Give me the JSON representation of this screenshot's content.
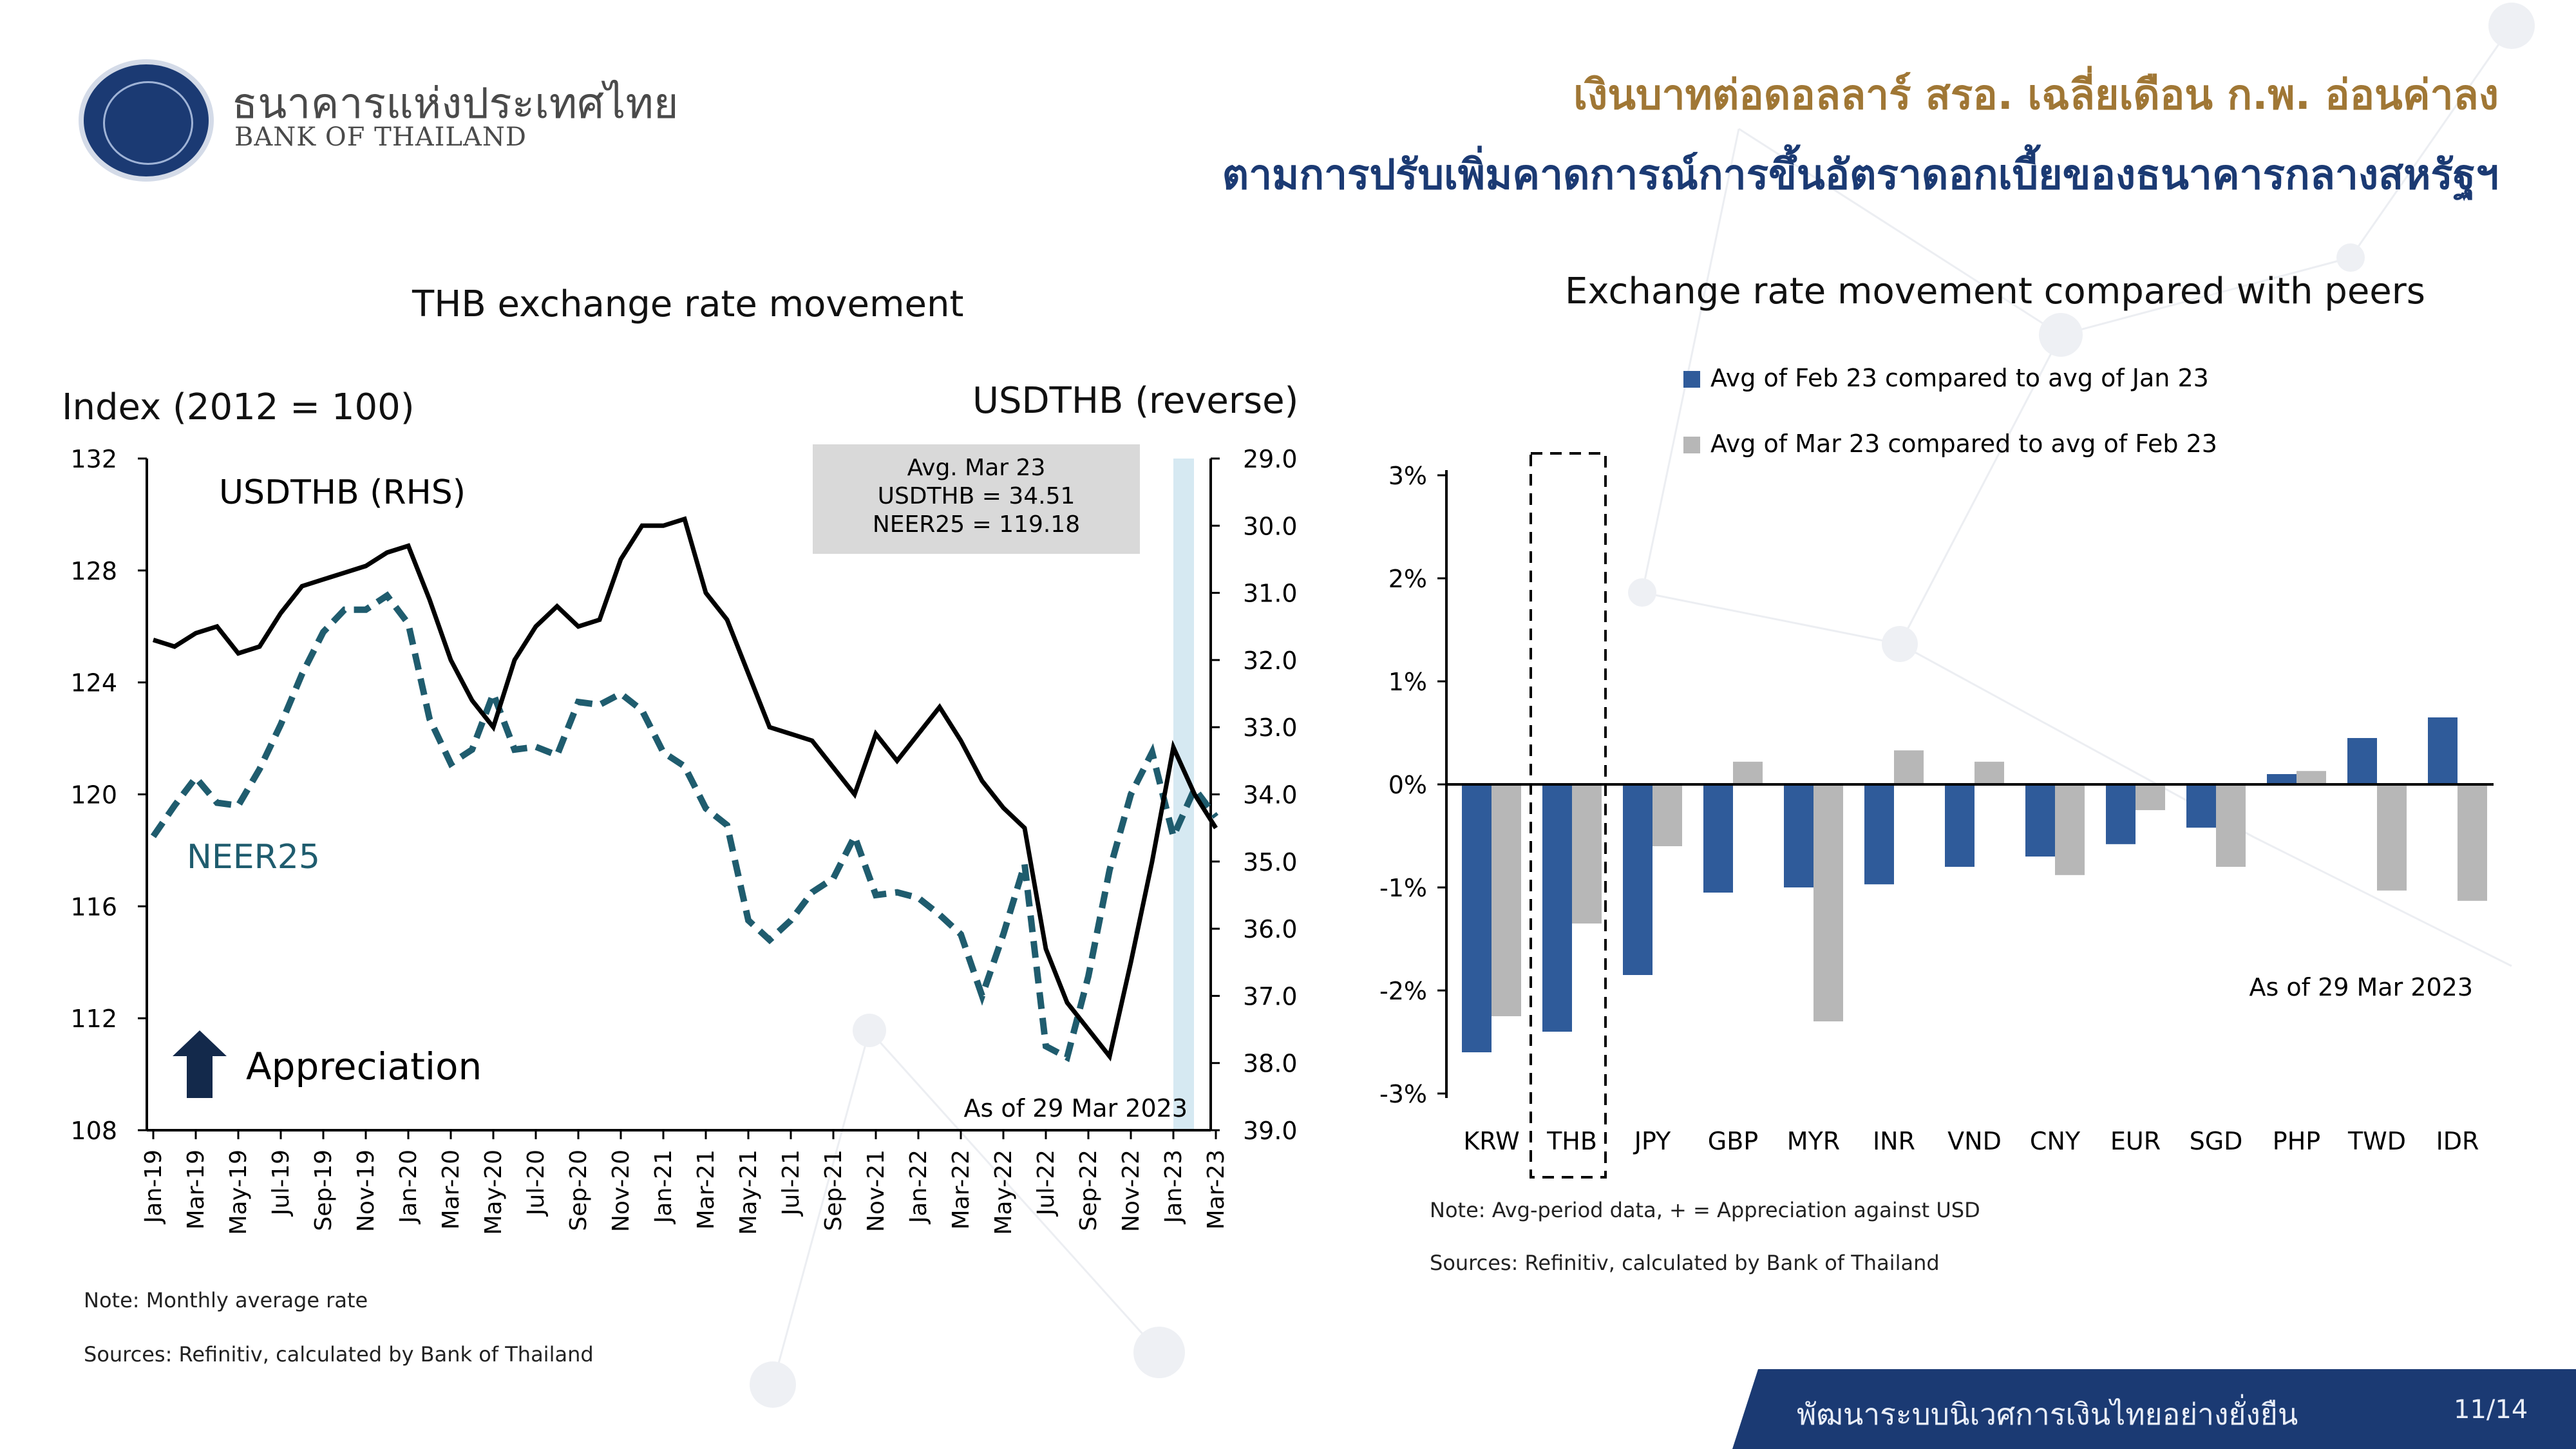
{
  "header": {
    "bank_name_th": "ธนาคารแห่งประเทศไทย",
    "bank_name_en": "BANK OF THAILAND",
    "title_line1": "เงินบาทต่อดอลลาร์ สรอ. เฉลี่ยเดือน ก.พ. อ่อนค่าลง",
    "title_line2": "ตามการปรับเพิ่มคาดการณ์การขึ้นอัตราดอกเบี้ยของธนาคารกลางสหรัฐฯ"
  },
  "colors": {
    "navy": "#1b3a73",
    "gold": "#a07735",
    "feb_bar": "#2f5b9a",
    "mar_bar": "#b7b7b7",
    "neer": "#1f5c6e",
    "usdthb": "#000000",
    "highlight": "#d6e9f2"
  },
  "chart_data": [
    {
      "type": "line",
      "title": "THB exchange rate movement",
      "ylabel_left": "Index (2012 = 100)",
      "ylabel_right": "USDTHB (reverse)",
      "ylim_left": [
        108,
        132
      ],
      "yticks_left": [
        "132",
        "128",
        "124",
        "120",
        "116",
        "112",
        "108"
      ],
      "ylim_right_reversed": [
        29.0,
        39.0
      ],
      "yticks_right": [
        "29.0",
        "30.0",
        "31.0",
        "32.0",
        "33.0",
        "34.0",
        "35.0",
        "36.0",
        "37.0",
        "38.0",
        "39.0"
      ],
      "x_tick_labels": [
        "Jan-19",
        "Mar-19",
        "May-19",
        "Jul-19",
        "Sep-19",
        "Nov-19",
        "Jan-20",
        "Mar-20",
        "May-20",
        "Jul-20",
        "Sep-20",
        "Nov-20",
        "Jan-21",
        "Mar-21",
        "May-21",
        "Jul-21",
        "Sep-21",
        "Nov-21",
        "Jan-22",
        "Mar-22",
        "May-22",
        "Jul-22",
        "Sep-22",
        "Nov-22",
        "Jan-23",
        "Mar-23"
      ],
      "series": [
        {
          "name": "USDTHB (RHS)",
          "axis": "right",
          "style": "solid",
          "values": [
            31.7,
            31.8,
            31.6,
            31.5,
            31.9,
            31.8,
            31.3,
            30.9,
            30.8,
            30.7,
            30.6,
            30.4,
            30.3,
            31.1,
            32.0,
            32.6,
            33.0,
            32.0,
            31.5,
            31.2,
            31.5,
            31.4,
            30.5,
            30.0,
            30.0,
            29.9,
            31.0,
            31.4,
            32.2,
            33.0,
            33.1,
            33.2,
            33.6,
            34.0,
            33.1,
            33.5,
            33.1,
            32.7,
            33.2,
            33.8,
            34.2,
            34.5,
            36.3,
            37.1,
            37.5,
            37.9,
            36.5,
            35.0,
            33.3,
            34.0,
            34.5
          ]
        },
        {
          "name": "NEER25",
          "axis": "left",
          "style": "dashed",
          "values": [
            118.5,
            119.6,
            120.6,
            119.7,
            119.6,
            120.9,
            122.5,
            124.3,
            125.8,
            126.6,
            126.6,
            127.1,
            126.1,
            122.7,
            121.1,
            121.6,
            123.6,
            121.6,
            121.7,
            121.4,
            123.3,
            123.2,
            123.6,
            123.0,
            121.5,
            121.0,
            119.5,
            118.9,
            115.5,
            114.8,
            115.5,
            116.5,
            117.0,
            118.5,
            116.4,
            116.5,
            116.3,
            115.7,
            115.0,
            112.8,
            115.0,
            117.5,
            111.0,
            110.6,
            113.5,
            117.3,
            120.0,
            121.5,
            118.5,
            120.2,
            119.2
          ]
        }
      ],
      "annotations": {
        "usdthb_label": "USDTHB (RHS)",
        "neer_label": "NEER25",
        "appreciation": "Appreciation",
        "box_line1": "Avg. Mar 23",
        "box_line2": "USDTHB = 34.51",
        "box_line3": "NEER25 = 119.18",
        "asof": "As of 29 Mar 2023"
      }
    },
    {
      "type": "bar",
      "title": "Exchange rate movement compared with peers",
      "categories": [
        "KRW",
        "THB",
        "JPY",
        "GBP",
        "MYR",
        "INR",
        "VND",
        "CNY",
        "EUR",
        "SGD",
        "PHP",
        "TWD",
        "IDR"
      ],
      "series": [
        {
          "name": "Avg of Feb 23 compared to avg of Jan 23",
          "values": [
            -2.6,
            -2.4,
            -1.85,
            -1.05,
            -1.0,
            -0.97,
            -0.8,
            -0.7,
            -0.58,
            -0.42,
            0.1,
            0.45,
            0.65
          ]
        },
        {
          "name": "Avg of Mar 23 compared to avg of Feb 23",
          "values": [
            -2.25,
            -1.35,
            -0.6,
            0.22,
            -2.3,
            0.33,
            0.22,
            -0.88,
            -0.25,
            -0.8,
            0.13,
            -1.03,
            -1.13
          ]
        }
      ],
      "ylim": [
        -3,
        3
      ],
      "yticks": [
        "3%",
        "2%",
        "1%",
        "0%",
        "-1%",
        "-2%",
        "-3%"
      ],
      "highlight_category": "THB",
      "asof": "As of 29 Mar 2023"
    }
  ],
  "notes": {
    "left_note": "Note: Monthly average rate",
    "left_sources": "Sources: Refinitiv, calculated by Bank of Thailand",
    "right_note": "Note: Avg-period data, + = Appreciation against USD",
    "right_sources": "Sources: Refinitiv, calculated by Bank of Thailand"
  },
  "footer": {
    "text": "พัฒนาระบบนิเวศการเงินไทยอย่างยั่งยืน",
    "page": "11/14"
  }
}
